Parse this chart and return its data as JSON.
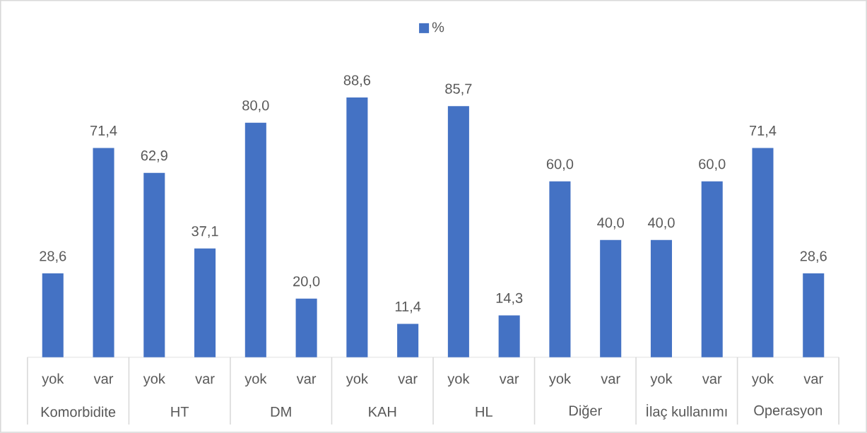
{
  "chart_data": {
    "type": "bar",
    "categories": [
      "yok",
      "var",
      "yok",
      "var",
      "yok",
      "var",
      "yok",
      "var",
      "yok",
      "var",
      "yok",
      "var",
      "yok",
      "var",
      "yok",
      "var"
    ],
    "series": [
      {
        "name": "%",
        "color": "#4472c4",
        "values": [
          28.6,
          71.4,
          62.9,
          37.1,
          80.0,
          20.0,
          88.6,
          11.4,
          85.7,
          14.3,
          60.0,
          40.0,
          40.0,
          60.0,
          71.4,
          28.6
        ],
        "value_labels": [
          "28,6",
          "71,4",
          "62,9",
          "37,1",
          "80,0",
          "20,0",
          "88,6",
          "11,4",
          "85,7",
          "14,3",
          "60,0",
          "40,0",
          "40,0",
          "60,0",
          "71,4",
          "28,6"
        ]
      }
    ],
    "annotations": [
      "Komorbidite",
      "HT",
      "DM",
      "KAH",
      "HL",
      "Diğer",
      "İlaç kullanımı",
      "Operasyon"
    ],
    "legend": "top"
  }
}
